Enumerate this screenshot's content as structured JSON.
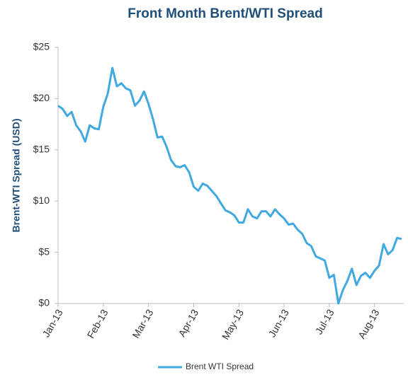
{
  "chart_data": {
    "type": "line",
    "title": "Front Month Brent/WTI Spread",
    "y_label": "Brent-WTI Spread (USD)",
    "categories": [
      "Jan-13",
      null,
      null,
      null,
      null,
      null,
      null,
      null,
      null,
      null,
      "Feb-13",
      null,
      null,
      null,
      null,
      null,
      null,
      null,
      null,
      null,
      "Mar-13",
      null,
      null,
      null,
      null,
      null,
      null,
      null,
      null,
      null,
      "Apr-13",
      null,
      null,
      null,
      null,
      null,
      null,
      null,
      null,
      null,
      "May-13",
      null,
      null,
      null,
      null,
      null,
      null,
      null,
      null,
      null,
      "Jun-13",
      null,
      null,
      null,
      null,
      null,
      null,
      null,
      null,
      null,
      "Jul-13",
      null,
      null,
      null,
      null,
      null,
      null,
      null,
      null,
      null,
      "Aug-13",
      null,
      null,
      null,
      null,
      null,
      null
    ],
    "series": [
      {
        "name": "Brent WTI Spread",
        "color": "#41a9e1",
        "values": [
          19.3,
          19.0,
          18.3,
          18.7,
          17.4,
          16.8,
          15.8,
          17.4,
          17.1,
          17.0,
          19.2,
          20.5,
          23.0,
          21.2,
          21.5,
          21.0,
          20.8,
          19.3,
          19.8,
          20.7,
          19.5,
          18.0,
          16.2,
          16.3,
          15.3,
          14.0,
          13.4,
          13.3,
          13.5,
          12.8,
          11.4,
          11.0,
          11.7,
          11.5,
          11.0,
          10.5,
          9.8,
          9.1,
          8.9,
          8.6,
          7.9,
          7.9,
          9.2,
          8.5,
          8.3,
          9.0,
          9.0,
          8.5,
          9.2,
          8.7,
          8.3,
          7.7,
          7.8,
          7.2,
          6.8,
          5.9,
          5.6,
          4.6,
          4.4,
          4.2,
          2.5,
          2.8,
          0.0,
          1.3,
          2.2,
          3.4,
          1.8,
          2.7,
          3.0,
          2.5,
          3.2,
          3.7,
          5.8,
          4.8,
          5.2,
          6.4,
          6.3
        ]
      }
    ],
    "ylim": [
      0,
      25
    ],
    "yticks": [
      {
        "value": 0,
        "label": "$0"
      },
      {
        "value": 5,
        "label": "$5"
      },
      {
        "value": 10,
        "label": "$10"
      },
      {
        "value": 15,
        "label": "$15"
      },
      {
        "value": 20,
        "label": "$20"
      },
      {
        "value": 25,
        "label": "$25"
      }
    ],
    "grid": false,
    "legend": "bottom"
  }
}
